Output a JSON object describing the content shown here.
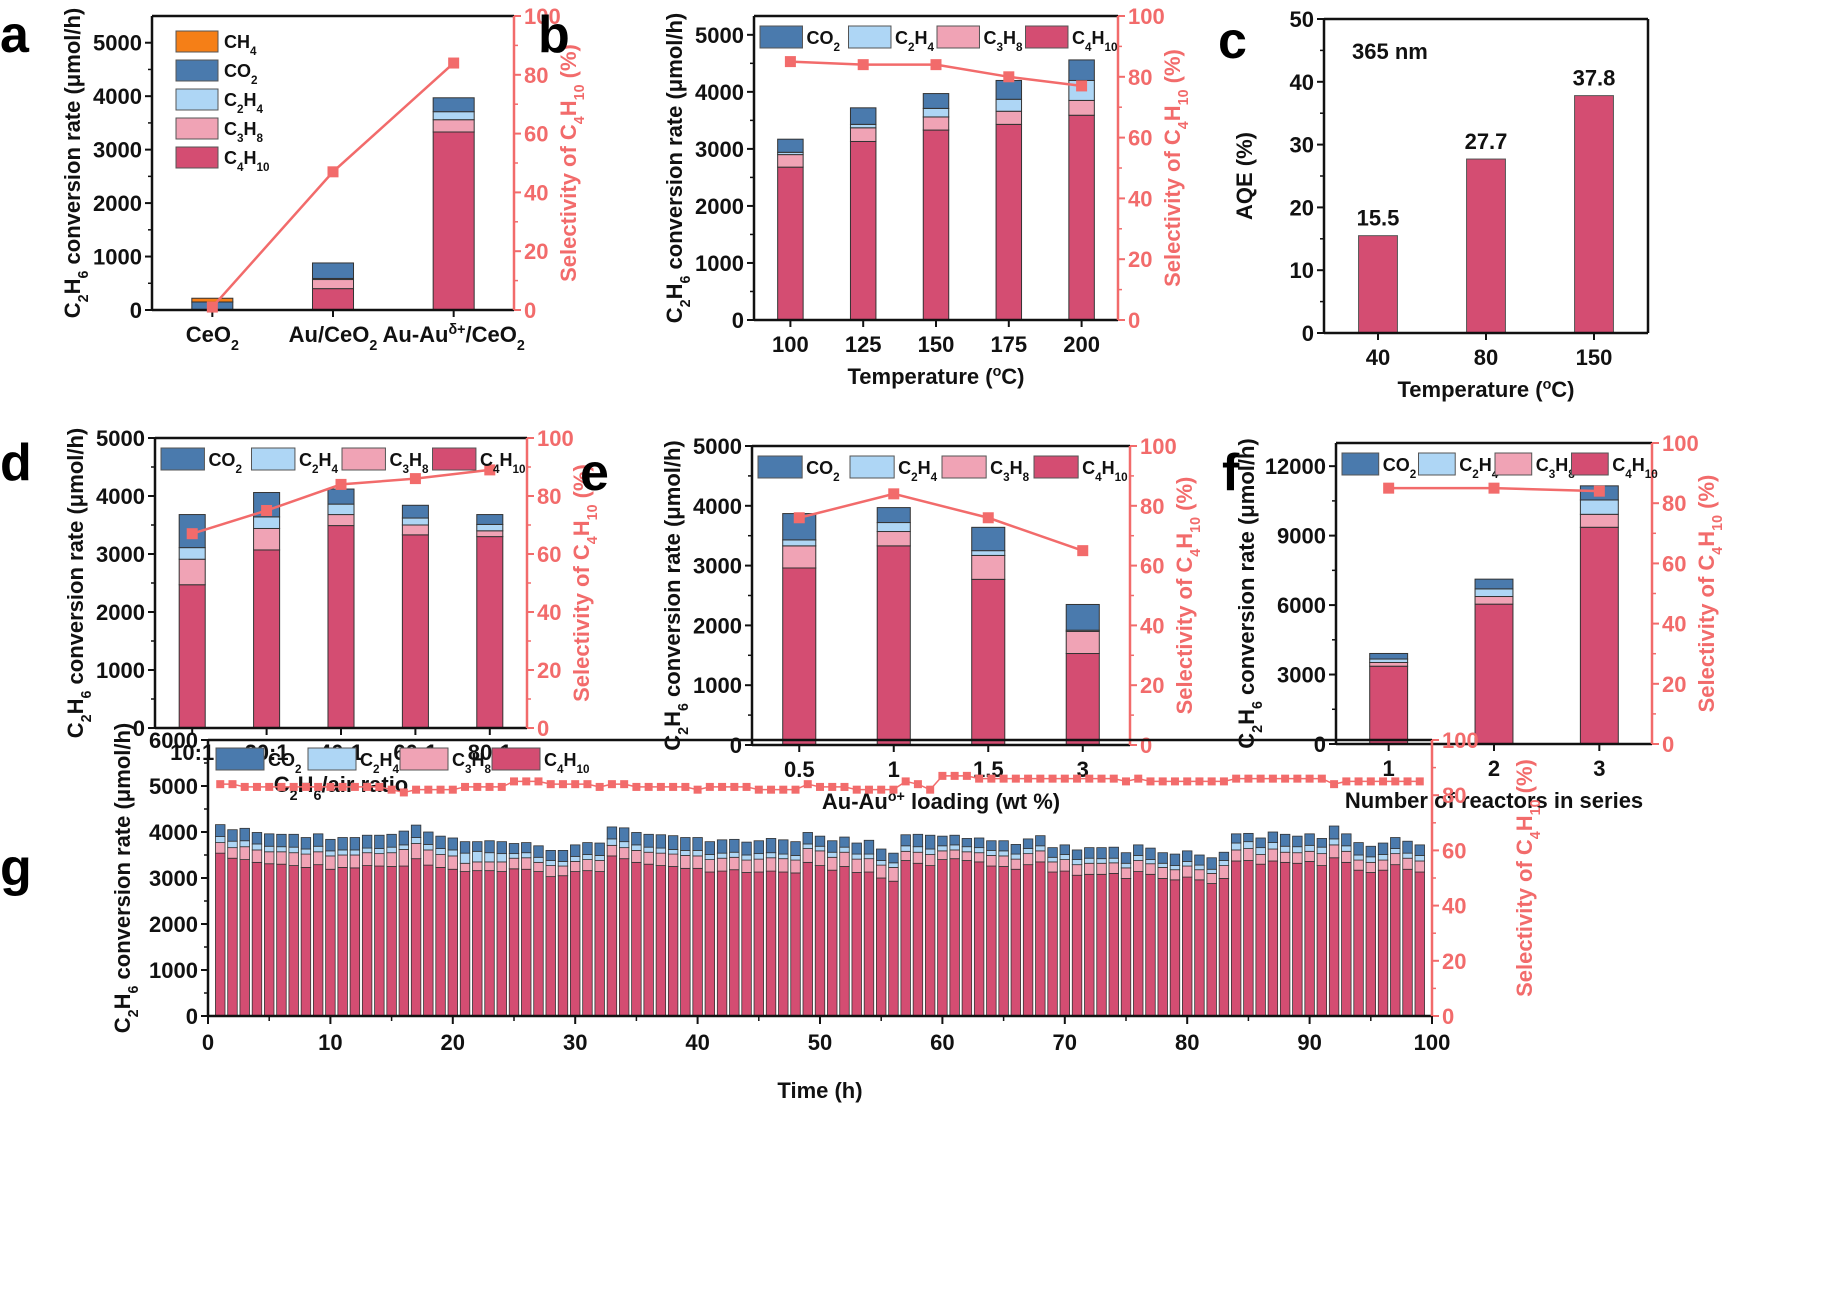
{
  "colors": {
    "CH4": "#f57f17",
    "CO2": "#4a7aad",
    "C2H4": "#aed6f5",
    "C3H8": "#f0a3b5",
    "C4H10": "#d44d72",
    "selectivity": "#f26b6b",
    "axis": "#111111"
  },
  "chart_data": [
    {
      "panel": "a",
      "type": "bar",
      "stacked": true,
      "title": "",
      "xlabel": "",
      "ylabel": "C2H6 conversion rate (μmol/h)",
      "y2label": "Selectivity of C4H10 (%)",
      "categories": [
        "CeO2",
        "Au/CeO2",
        "Au-Auδ+/CeO2"
      ],
      "ylim": [
        0,
        5500
      ],
      "yticks": [
        0,
        1000,
        2000,
        3000,
        4000,
        5000
      ],
      "y2lim": [
        0,
        100
      ],
      "y2ticks": [
        0,
        20,
        40,
        60,
        80,
        100
      ],
      "legend_position": "top-left",
      "legend": [
        "CH4",
        "CO2",
        "C2H4",
        "C3H8",
        "C4H10"
      ],
      "series": [
        {
          "name": "C4H10",
          "values": [
            0,
            400,
            3330
          ]
        },
        {
          "name": "C3H8",
          "values": [
            0,
            170,
            230
          ]
        },
        {
          "name": "C2H4",
          "values": [
            0,
            20,
            150
          ]
        },
        {
          "name": "CO2",
          "values": [
            150,
            290,
            260
          ]
        },
        {
          "name": "CH4",
          "values": [
            70,
            0,
            0
          ]
        }
      ],
      "selectivity": [
        1,
        47,
        84
      ]
    },
    {
      "panel": "b",
      "type": "bar",
      "stacked": true,
      "xlabel": "Temperature (°C)",
      "ylabel": "C2H6 conversion rate (μmol/h)",
      "y2label": "Selectivity of C4H10 (%)",
      "categories": [
        "100",
        "125",
        "150",
        "175",
        "200"
      ],
      "ylim": [
        0,
        5330
      ],
      "yticks": [
        0,
        1000,
        2000,
        3000,
        4000,
        5000
      ],
      "y2lim": [
        0,
        100
      ],
      "y2ticks": [
        0,
        20,
        40,
        60,
        80,
        100
      ],
      "legend_position": "top",
      "legend": [
        "CO2",
        "C2H4",
        "C3H8",
        "C4H10"
      ],
      "series": [
        {
          "name": "C4H10",
          "values": [
            2680,
            3130,
            3330,
            3430,
            3590
          ]
        },
        {
          "name": "C3H8",
          "values": [
            220,
            240,
            230,
            230,
            260
          ]
        },
        {
          "name": "C2H4",
          "values": [
            40,
            60,
            150,
            210,
            350
          ]
        },
        {
          "name": "CO2",
          "values": [
            230,
            290,
            260,
            330,
            360
          ]
        }
      ],
      "selectivity": [
        85,
        84,
        84,
        80,
        77
      ]
    },
    {
      "panel": "c",
      "type": "bar",
      "stacked": false,
      "xlabel": "Temperature (°C)",
      "ylabel": "AQE (%)",
      "annotation": "365 nm",
      "categories": [
        "40",
        "80",
        "150"
      ],
      "values": [
        15.5,
        27.7,
        37.8
      ],
      "data_labels": [
        "15.5",
        "27.7",
        "37.8"
      ],
      "ylim": [
        0,
        50
      ],
      "yticks": [
        0,
        10,
        20,
        30,
        40,
        50
      ]
    },
    {
      "panel": "d",
      "type": "bar",
      "stacked": true,
      "xlabel": "C2H6/air ratio",
      "ylabel": "C2H6 conversion rate (μmol/h)",
      "y2label": "Selectivity of C4H10 (%)",
      "categories": [
        "10:1",
        "20:1",
        "40:1",
        "60:1",
        "80:1"
      ],
      "ylim": [
        0,
        5000
      ],
      "yticks": [
        0,
        1000,
        2000,
        3000,
        4000,
        5000
      ],
      "y2lim": [
        0,
        100
      ],
      "y2ticks": [
        0,
        20,
        40,
        60,
        80,
        100
      ],
      "legend_position": "top",
      "legend": [
        "CO2",
        "C2H4",
        "C3H8",
        "C4H10"
      ],
      "series": [
        {
          "name": "C4H10",
          "values": [
            2470,
            3070,
            3490,
            3330,
            3300
          ]
        },
        {
          "name": "C3H8",
          "values": [
            440,
            370,
            190,
            170,
            100
          ]
        },
        {
          "name": "C2H4",
          "values": [
            200,
            200,
            180,
            120,
            110
          ]
        },
        {
          "name": "CO2",
          "values": [
            570,
            420,
            260,
            220,
            170
          ]
        }
      ],
      "selectivity": [
        67,
        75,
        84,
        86,
        89
      ]
    },
    {
      "panel": "e",
      "type": "bar",
      "stacked": true,
      "xlabel": "Au-Auδ+ loading (wt %)",
      "ylabel": "C2H6 conversion rate (μmol/h)",
      "y2label": "Selectivity of C4H10 (%)",
      "categories": [
        "0.5",
        "1",
        "1.5",
        "3"
      ],
      "ylim": [
        0,
        5000
      ],
      "yticks": [
        0,
        1000,
        2000,
        3000,
        4000,
        5000
      ],
      "y2lim": [
        0,
        100
      ],
      "y2ticks": [
        0,
        20,
        40,
        60,
        80,
        100
      ],
      "legend_position": "top",
      "legend": [
        "CO2",
        "C2H4",
        "C3H8",
        "C4H10"
      ],
      "series": [
        {
          "name": "C4H10",
          "values": [
            2960,
            3330,
            2770,
            1530
          ]
        },
        {
          "name": "C3H8",
          "values": [
            370,
            240,
            400,
            370
          ]
        },
        {
          "name": "C2H4",
          "values": [
            100,
            150,
            80,
            20
          ]
        },
        {
          "name": "CO2",
          "values": [
            440,
            250,
            390,
            430
          ]
        }
      ],
      "selectivity": [
        76,
        84,
        76,
        65
      ]
    },
    {
      "panel": "f",
      "type": "bar",
      "stacked": true,
      "xlabel": "Number of reactors in series",
      "ylabel": "C2H6 conversion rate (μmol/h)",
      "y2label": "Selectivity of C4H10 (%)",
      "categories": [
        "1",
        "2",
        "3"
      ],
      "ylim": [
        0,
        13000
      ],
      "yticks": [
        0,
        3000,
        6000,
        9000,
        12000
      ],
      "y2lim": [
        0,
        100
      ],
      "y2ticks": [
        0,
        20,
        40,
        60,
        80,
        100
      ],
      "legend_position": "top",
      "legend": [
        "CO2",
        "C2H4",
        "C3H8",
        "C4H10"
      ],
      "series": [
        {
          "name": "C4H10",
          "values": [
            3360,
            6040,
            9360
          ]
        },
        {
          "name": "C3H8",
          "values": [
            160,
            330,
            560
          ]
        },
        {
          "name": "C2H4",
          "values": [
            150,
            330,
            620
          ]
        },
        {
          "name": "CO2",
          "values": [
            240,
            420,
            610
          ]
        }
      ],
      "selectivity": [
        85,
        85,
        84
      ]
    },
    {
      "panel": "g",
      "type": "bar",
      "stacked": true,
      "xlabel": "Time (h)",
      "ylabel": "C2H6 conversion rate (μmol/h)",
      "y2label": "Selectivity of C4H10 (%)",
      "xlim": [
        0,
        100
      ],
      "xticks": [
        0,
        10,
        20,
        30,
        40,
        50,
        60,
        70,
        80,
        90,
        100
      ],
      "ylim": [
        0,
        6000
      ],
      "yticks": [
        0,
        1000,
        2000,
        3000,
        4000,
        5000,
        6000
      ],
      "y2lim": [
        0,
        100
      ],
      "y2ticks": [
        0,
        20,
        40,
        60,
        80,
        100
      ],
      "legend_position": "top-left",
      "legend": [
        "CO2",
        "C2H4",
        "C3H8",
        "C4H10"
      ],
      "x": [
        1,
        2,
        3,
        4,
        5,
        6,
        7,
        8,
        9,
        10,
        11,
        12,
        13,
        14,
        15,
        16,
        17,
        18,
        19,
        20,
        21,
        22,
        23,
        24,
        25,
        26,
        27,
        28,
        29,
        30,
        31,
        32,
        33,
        34,
        35,
        36,
        37,
        38,
        39,
        40,
        41,
        42,
        43,
        44,
        45,
        46,
        47,
        48,
        49,
        50,
        51,
        52,
        53,
        54,
        55,
        56,
        57,
        58,
        59,
        60,
        61,
        62,
        63,
        64,
        65,
        66,
        67,
        68,
        69,
        70,
        71,
        72,
        73,
        74,
        75,
        76,
        77,
        78,
        79,
        80,
        81,
        82,
        83,
        84,
        85,
        86,
        87,
        88,
        89,
        90,
        91,
        92,
        93,
        94,
        95,
        96,
        97,
        98,
        99
      ],
      "total": [
        4160,
        4050,
        4080,
        3990,
        3960,
        3950,
        3950,
        3880,
        3960,
        3840,
        3880,
        3880,
        3930,
        3930,
        3950,
        4020,
        4150,
        4000,
        3910,
        3870,
        3790,
        3790,
        3810,
        3790,
        3750,
        3770,
        3700,
        3600,
        3600,
        3720,
        3770,
        3760,
        4110,
        4090,
        3990,
        3950,
        3940,
        3920,
        3880,
        3880,
        3790,
        3830,
        3840,
        3780,
        3810,
        3860,
        3830,
        3790,
        3990,
        3910,
        3810,
        3890,
        3760,
        3790,
        3630,
        3540,
        3940,
        3950,
        3930,
        3910,
        3930,
        3860,
        3870,
        3810,
        3810,
        3730,
        3850,
        3920,
        3660,
        3720,
        3610,
        3660,
        3660,
        3670,
        3550,
        3720,
        3650,
        3550,
        3520,
        3590,
        3500,
        3440,
        3560,
        3960,
        3970,
        3870,
        4000,
        3950,
        3910,
        3960,
        3860,
        4130,
        3960,
        3770,
        3690,
        3760,
        3880,
        3800,
        3720
      ],
      "C4H10": [
        3540,
        3430,
        3400,
        3340,
        3310,
        3300,
        3270,
        3230,
        3290,
        3190,
        3230,
        3220,
        3270,
        3260,
        3250,
        3260,
        3420,
        3280,
        3230,
        3190,
        3140,
        3160,
        3160,
        3140,
        3200,
        3190,
        3140,
        3030,
        3050,
        3140,
        3160,
        3140,
        3480,
        3420,
        3340,
        3300,
        3270,
        3250,
        3210,
        3210,
        3130,
        3150,
        3180,
        3120,
        3130,
        3150,
        3130,
        3110,
        3340,
        3270,
        3170,
        3250,
        3120,
        3130,
        3000,
        2930,
        3380,
        3320,
        3270,
        3400,
        3420,
        3380,
        3350,
        3260,
        3250,
        3190,
        3290,
        3350,
        3130,
        3150,
        3060,
        3080,
        3080,
        3100,
        2990,
        3140,
        3080,
        2990,
        2960,
        3020,
        2960,
        2880,
        2990,
        3370,
        3380,
        3300,
        3370,
        3340,
        3320,
        3360,
        3270,
        3440,
        3340,
        3170,
        3120,
        3170,
        3290,
        3190,
        3130
      ],
      "C3H8": [
        230,
        230,
        280,
        270,
        260,
        270,
        280,
        290,
        280,
        290,
        270,
        280,
        280,
        270,
        300,
        360,
        330,
        330,
        280,
        290,
        180,
        190,
        190,
        210,
        230,
        250,
        200,
        240,
        210,
        220,
        240,
        240,
        230,
        240,
        260,
        260,
        270,
        270,
        280,
        270,
        270,
        280,
        270,
        270,
        280,
        290,
        290,
        280,
        300,
        320,
        280,
        310,
        290,
        290,
        280,
        300,
        200,
        240,
        240,
        190,
        190,
        190,
        200,
        230,
        230,
        220,
        240,
        240,
        220,
        250,
        230,
        240,
        240,
        230,
        230,
        240,
        230,
        240,
        220,
        240,
        220,
        220,
        280,
        240,
        260,
        210,
        260,
        220,
        230,
        220,
        260,
        280,
        240,
        220,
        220,
        220,
        240,
        240,
        240
      ],
      "C2H4": [
        130,
        140,
        130,
        130,
        120,
        110,
        120,
        110,
        120,
        110,
        110,
        110,
        100,
        110,
        120,
        100,
        130,
        120,
        130,
        130,
        220,
        230,
        200,
        180,
        100,
        110,
        110,
        110,
        100,
        110,
        110,
        110,
        140,
        130,
        120,
        110,
        110,
        100,
        110,
        120,
        110,
        110,
        110,
        110,
        120,
        110,
        100,
        100,
        100,
        100,
        110,
        110,
        110,
        100,
        100,
        100,
        120,
        120,
        120,
        110,
        110,
        110,
        110,
        110,
        110,
        110,
        110,
        110,
        100,
        110,
        110,
        110,
        100,
        100,
        100,
        110,
        90,
        90,
        90,
        100,
        100,
        90,
        110,
        150,
        150,
        150,
        140,
        130,
        130,
        130,
        140,
        130,
        120,
        110,
        120,
        120,
        110,
        110,
        120
      ],
      "CO2": [
        260,
        250,
        270,
        250,
        270,
        270,
        280,
        250,
        270,
        250,
        270,
        270,
        280,
        290,
        280,
        300,
        270,
        270,
        270,
        260,
        250,
        210,
        260,
        260,
        220,
        220,
        250,
        220,
        240,
        250,
        260,
        270,
        260,
        300,
        270,
        280,
        290,
        300,
        280,
        280,
        280,
        290,
        280,
        280,
        280,
        310,
        310,
        300,
        250,
        220,
        250,
        220,
        240,
        300,
        250,
        210,
        240,
        270,
        300,
        210,
        210,
        180,
        210,
        210,
        220,
        210,
        210,
        220,
        210,
        210,
        210,
        230,
        240,
        240,
        230,
        230,
        250,
        230,
        250,
        230,
        220,
        250,
        180,
        200,
        180,
        210,
        230,
        260,
        230,
        250,
        190,
        280,
        260,
        270,
        230,
        250,
        240,
        260,
        230
      ],
      "selectivity": [
        84,
        84,
        83,
        83,
        83,
        83,
        83,
        83,
        83,
        83,
        83,
        83,
        83,
        83,
        82,
        81,
        82,
        82,
        82,
        82,
        83,
        83,
        83,
        83,
        85,
        85,
        85,
        84,
        84,
        84,
        84,
        83,
        84,
        84,
        83,
        83,
        83,
        83,
        83,
        82,
        83,
        83,
        83,
        83,
        82,
        82,
        82,
        82,
        84,
        83,
        83,
        83,
        82,
        82,
        82,
        82,
        85,
        84,
        82,
        87,
        87,
        87,
        86,
        86,
        86,
        86,
        86,
        86,
        86,
        86,
        86,
        86,
        86,
        86,
        85,
        86,
        85,
        85,
        85,
        85,
        85,
        85,
        85,
        86,
        86,
        86,
        86,
        86,
        86,
        86,
        86,
        84,
        85,
        85,
        85,
        85,
        85,
        85,
        85
      ]
    }
  ],
  "panel_labels": [
    "a",
    "b",
    "c",
    "d",
    "e",
    "f",
    "g"
  ],
  "legend_labels": {
    "CH4": {
      "main": "CH",
      "sub": "4"
    },
    "CO2": {
      "main": "CO",
      "sub": "2"
    },
    "C2H4": {
      "parts": [
        "C",
        "2",
        "H",
        "4"
      ]
    },
    "C3H8": {
      "parts": [
        "C",
        "3",
        "H",
        "8"
      ]
    },
    "C4H10": {
      "parts": [
        "C",
        "4",
        "H",
        "10"
      ]
    }
  },
  "axis_texts": {
    "ylabel_rate": "C2H6 conversion rate (μmol/h)",
    "ylabel_sel": "Selectivity of C4H10 (%)",
    "a_xticks": [
      "CeO2",
      "Au/CeO2",
      "Au-Auδ+/CeO2"
    ],
    "b_xlabel": "Temperature (°C)",
    "c_xlabel": "Temperature (°C)",
    "c_ylabel": "AQE (%)",
    "c_annotation": "365 nm",
    "d_xlabel": "C2H6/air ratio",
    "e_xlabel": "Au-Auδ+ loading (wt %)",
    "f_xlabel": "Number of reactors in series",
    "g_xlabel": "Time (h)"
  }
}
